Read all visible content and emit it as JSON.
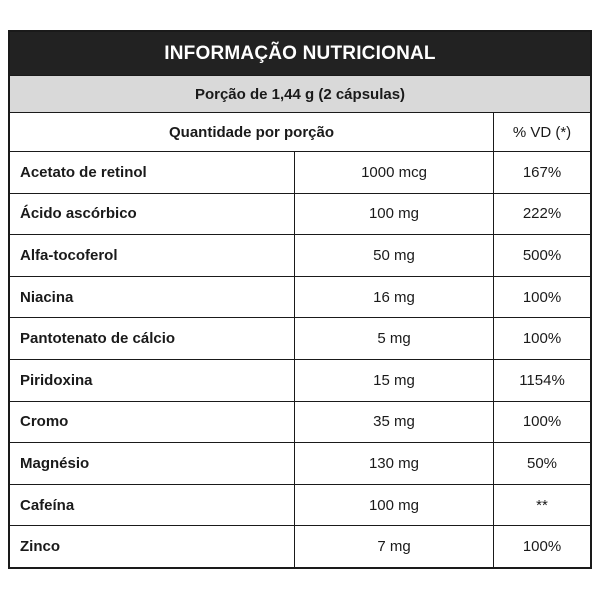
{
  "table": {
    "title": "INFORMAÇÃO NUTRICIONAL",
    "portion": "Porção de 1,44 g (2 cápsulas)",
    "headers": {
      "quantity": "Quantidade por porção",
      "vd": "% VD (*)"
    },
    "rows": [
      {
        "name": "Acetato de retinol",
        "amount": "1000 mcg",
        "vd": "167%"
      },
      {
        "name": "Ácido ascórbico",
        "amount": "100 mg",
        "vd": "222%"
      },
      {
        "name": "Alfa-tocoferol",
        "amount": "50 mg",
        "vd": "500%"
      },
      {
        "name": "Niacina",
        "amount": "16 mg",
        "vd": "100%"
      },
      {
        "name": "Pantotenato de cálcio",
        "amount": "5 mg",
        "vd": "100%"
      },
      {
        "name": "Piridoxina",
        "amount": "15 mg",
        "vd": "1154%"
      },
      {
        "name": "Cromo",
        "amount": "35 mg",
        "vd": "100%"
      },
      {
        "name": "Magnésio",
        "amount": "130 mg",
        "vd": "50%"
      },
      {
        "name": "Cafeína",
        "amount": "100 mg",
        "vd": "**"
      },
      {
        "name": "Zinco",
        "amount": "7 mg",
        "vd": "100%"
      }
    ]
  }
}
